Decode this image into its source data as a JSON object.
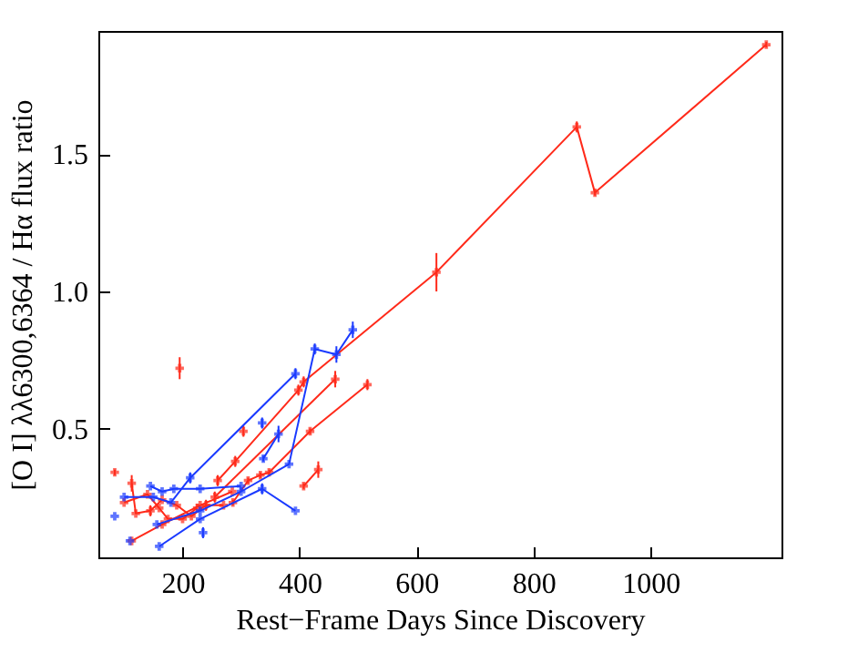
{
  "chart_data": {
    "type": "line",
    "xlabel": "Rest−Frame Days Since Discovery",
    "ylabel": "[O I] λλ6300,6364 / Hα flux ratio",
    "xlim": [
      56,
      1224
    ],
    "ylim": [
      0.03,
      1.95
    ],
    "xticks": [
      200,
      400,
      600,
      800,
      1000
    ],
    "yticks": [
      {
        "value": 0.5,
        "label": "0.5"
      },
      {
        "value": 1,
        "label": "1.0"
      },
      {
        "value": 1.5,
        "label": "1.5"
      }
    ],
    "marker": "cross",
    "grid": false,
    "series": [
      {
        "color": "#ff2a1a",
        "x": [
          260,
          290,
          398,
          407,
          634,
          874,
          905,
          1198
        ],
        "values": [
          0.31,
          0.38,
          0.64,
          0.67,
          1.07,
          1.6,
          1.36,
          1.9
        ],
        "errors": [
          0.02,
          0.02,
          0.02,
          0.02,
          0.07,
          0.02,
          0.01,
          0.01
        ]
      },
      {
        "color": "#ff2a1a",
        "x": [
          255,
          461
        ],
        "values": [
          0.25,
          0.68
        ],
        "errors": [
          0.02,
          0.03
        ]
      },
      {
        "color": "#ff2a1a",
        "x": [
          286,
          312,
          333,
          348,
          418,
          516
        ],
        "values": [
          0.23,
          0.31,
          0.33,
          0.34,
          0.49,
          0.66
        ],
        "errors": [
          0.01,
          0.01,
          0.01,
          0.01,
          0.01,
          0.02
        ]
      },
      {
        "color": "#ff2a1a",
        "x": [
          407,
          432
        ],
        "values": [
          0.29,
          0.35
        ],
        "errors": [
          0.01,
          0.03
        ]
      },
      {
        "color": "#ff2a1a",
        "x": [
          113,
          165,
          230,
          285
        ],
        "values": [
          0.09,
          0.15,
          0.22,
          0.27
        ]
      },
      {
        "color": "#ff2a1a",
        "x": [
          113,
          120,
          145,
          165,
          190,
          215,
          240,
          270
        ],
        "values": [
          0.3,
          0.19,
          0.2,
          0.24,
          0.22,
          0.18,
          0.22,
          0.22
        ],
        "errors": [
          0.03,
          null,
          0.02,
          null,
          null,
          null,
          0.02,
          null
        ]
      },
      {
        "color": "#ff2a1a",
        "x": [
          100,
          140,
          160,
          175,
          200,
          225
        ],
        "values": [
          0.23,
          0.26,
          0.21,
          0.17,
          0.17,
          0.21
        ]
      },
      {
        "type": "scatter",
        "color": "#ff2a1a",
        "x": [
          84,
          195,
          304
        ],
        "values": [
          0.34,
          0.72,
          0.49
        ],
        "errors": [
          0.01,
          0.04,
          0.02
        ]
      },
      {
        "color": "#1a3aff",
        "x": [
          156,
          230,
          300,
          382,
          426,
          463,
          491
        ],
        "values": [
          0.15,
          0.2,
          0.27,
          0.37,
          0.79,
          0.77,
          0.86
        ],
        "errors": [
          null,
          null,
          null,
          null,
          0.02,
          0.03,
          0.03
        ]
      },
      {
        "color": "#1a3aff",
        "x": [
          160,
          230,
          336,
          393
        ],
        "values": [
          0.07,
          0.17,
          0.28,
          0.2
        ],
        "errors": [
          null,
          null,
          0.02,
          null
        ]
      },
      {
        "color": "#1a3aff",
        "x": [
          100,
          150,
          180,
          213,
          393
        ],
        "values": [
          0.25,
          0.25,
          0.23,
          0.32,
          0.7
        ],
        "errors": [
          null,
          null,
          null,
          0.02,
          0.02
        ]
      },
      {
        "color": "#1a3aff",
        "x": [
          338,
          364
        ],
        "values": [
          0.39,
          0.48
        ],
        "errors": [
          0.01,
          0.03
        ]
      },
      {
        "color": "#1a3aff",
        "x": [
          145,
          165,
          185,
          230,
          300
        ],
        "values": [
          0.29,
          0.27,
          0.28,
          0.28,
          0.29
        ]
      },
      {
        "type": "scatter",
        "color": "#1a3aff",
        "x": [
          84,
          110,
          235,
          336
        ],
        "values": [
          0.18,
          0.09,
          0.12,
          0.52
        ],
        "errors": [
          null,
          null,
          0.02,
          0.02
        ]
      }
    ]
  }
}
